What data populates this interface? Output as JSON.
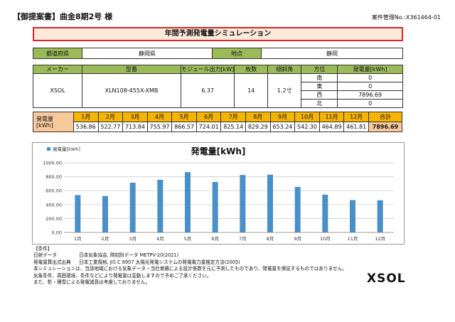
{
  "header": {
    "title": "【御提案書】曲金8期2号 様",
    "case_no": "案件管理No.:X361464-01"
  },
  "sim_title": "年間予測発電量シミュレーション",
  "location": {
    "pref_label": "都道府県",
    "pref_value": "静岡県",
    "point_label": "地点",
    "point_value": "静岡"
  },
  "module": {
    "headers": [
      "メーカー",
      "型番",
      "モジュール出力[kW]",
      "枚数",
      "傾斜角",
      "方位",
      "発電量[kWh]"
    ],
    "maker": "XSOL",
    "model": "XLN108-455X-XMB",
    "output": "6.37",
    "count": "14",
    "tilt": "1.2寸",
    "directions": [
      {
        "dir": "南",
        "value": "0"
      },
      {
        "dir": "東",
        "value": "0"
      },
      {
        "dir": "西",
        "value": "7896.69"
      },
      {
        "dir": "北",
        "value": "0"
      }
    ]
  },
  "monthly": {
    "label_line1": "発電量",
    "label_line2": "[kWh]",
    "months": [
      "1月",
      "2月",
      "3月",
      "4月",
      "5月",
      "6月",
      "7月",
      "8月",
      "9月",
      "10月",
      "11月",
      "12月"
    ],
    "values": [
      "536.86",
      "522.77",
      "713.84",
      "755.97",
      "866.57",
      "724.01",
      "825.14",
      "829.29",
      "653.24",
      "542.30",
      "464.89",
      "461.81"
    ],
    "total_label": "合計",
    "total_value": "7896.69"
  },
  "chart_data": {
    "type": "bar",
    "title": "発電量[kWh]",
    "legend": "発電量[kWh]",
    "categories": [
      "1月",
      "2月",
      "3月",
      "4月",
      "5月",
      "6月",
      "7月",
      "8月",
      "9月",
      "10月",
      "11月",
      "12月"
    ],
    "series": [
      {
        "name": "発電量[kWh]",
        "values": [
          536.86,
          522.77,
          713.84,
          755.97,
          866.57,
          724.01,
          825.14,
          829.29,
          653.24,
          542.3,
          464.89,
          461.81
        ]
      }
    ],
    "yticks": [
      "0.00",
      "200.00",
      "400.00",
      "600.00",
      "800.00",
      "1000.00"
    ],
    "ylim": [
      0,
      1000
    ],
    "grid": true,
    "bar_color": "#4a90c8"
  },
  "conditions": {
    "heading": "【条件】",
    "lines": [
      [
        "日射データ",
        "日本気象協会, 時刻別データ METPV-20(2021)"
      ],
      [
        "発電量算出式出典",
        "日本工業規格, JIS C 8907 太陽光発電システムの発電電力量推定方法(2005)"
      ],
      [
        "本シミュレーションは、当該地域における気象データ・当社実績による設計係数を元に予測したものであり、発電量を保証するものではありません。",
        ""
      ],
      [
        "気象条件、周囲環境、条件などにより発電量は変動しますので予めご了承ください。",
        ""
      ],
      [
        "また、影・積雪による発電減衰は考慮しておりません。",
        ""
      ]
    ]
  },
  "logo": "XSOL"
}
